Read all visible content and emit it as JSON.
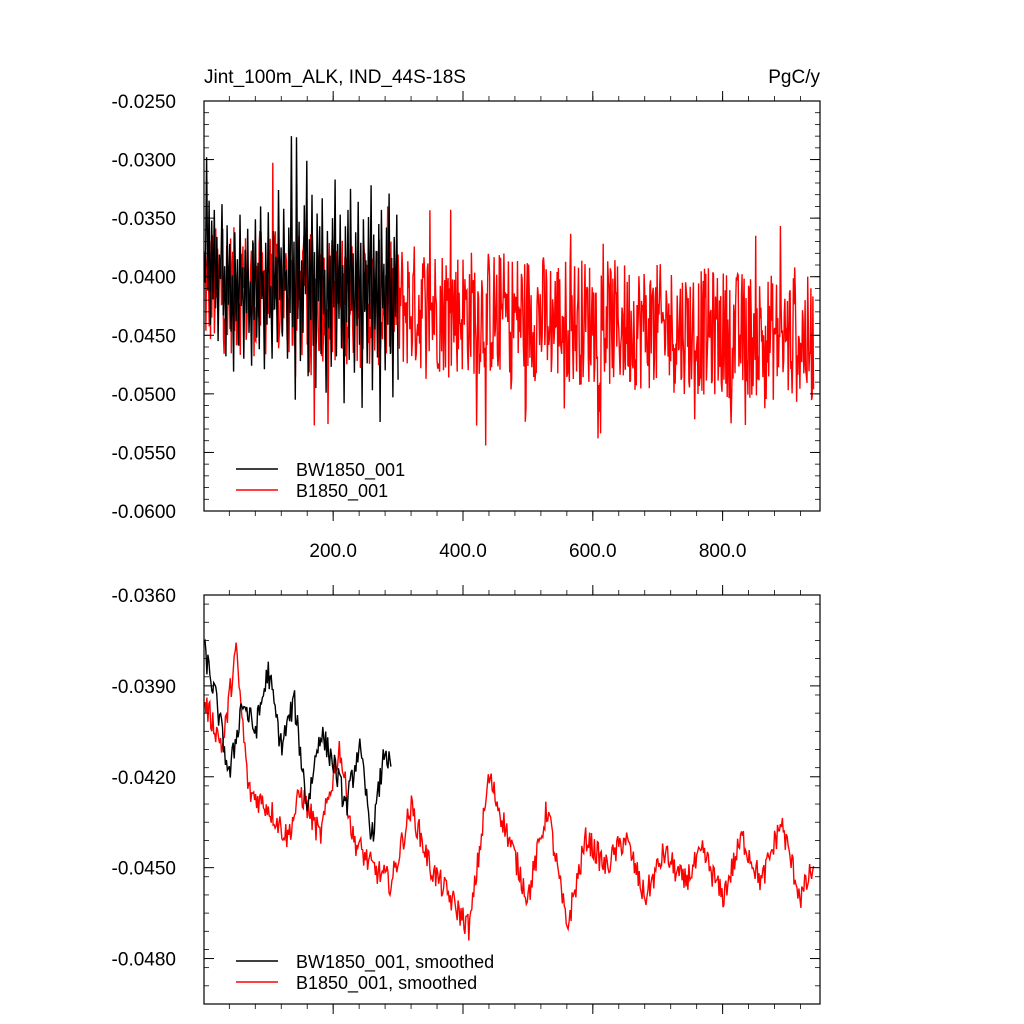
{
  "chart_data": [
    {
      "type": "line",
      "title": "Jint_100m_ALK, IND_44S-18S",
      "units": "PgC/y",
      "xlim": [
        1,
        950
      ],
      "ylim": [
        -0.06,
        -0.025
      ],
      "xticks": [
        200,
        400,
        600,
        800
      ],
      "xtick_labels": [
        "200.0",
        "400.0",
        "600.0",
        "800.0"
      ],
      "yticks": [
        -0.025,
        -0.03,
        -0.035,
        -0.04,
        -0.045,
        -0.05,
        -0.055,
        -0.06
      ],
      "ytick_labels": [
        "-0.0250",
        "-0.0300",
        "-0.0350",
        "-0.0400",
        "-0.0450",
        "-0.0500",
        "-0.0550",
        "-0.0600"
      ],
      "legend_position": "bottom-left",
      "series": [
        {
          "name": "BW1850_001",
          "color": "#000000",
          "x_start": 1,
          "values": [
            -0.0378,
            -0.0405,
            -0.0298,
            -0.0412,
            -0.0335,
            -0.0441,
            -0.0352,
            -0.0419,
            -0.0343,
            -0.0427,
            -0.0366,
            -0.0455,
            -0.0381,
            -0.0402,
            -0.0338,
            -0.0433,
            -0.0391,
            -0.0468,
            -0.0356,
            -0.0424,
            -0.0372,
            -0.0447,
            -0.0399,
            -0.0481,
            -0.0362,
            -0.0438,
            -0.0385,
            -0.0459,
            -0.0347,
            -0.0425,
            -0.0392,
            -0.047,
            -0.0377,
            -0.0431,
            -0.0359,
            -0.0448,
            -0.0404,
            -0.0476,
            -0.0369,
            -0.0437,
            -0.0351,
            -0.0452,
            -0.0388,
            -0.0462,
            -0.034,
            -0.0419,
            -0.0395,
            -0.0479,
            -0.0371,
            -0.0441,
            -0.0345,
            -0.0435,
            -0.0408,
            -0.047,
            -0.0361,
            -0.0428,
            -0.0383,
            -0.0456,
            -0.0326,
            -0.042,
            -0.0375,
            -0.0451,
            -0.0342,
            -0.0412,
            -0.0394,
            -0.047,
            -0.0358,
            -0.0431,
            -0.028,
            -0.0443,
            -0.037,
            -0.0505,
            -0.0281,
            -0.0436,
            -0.0353,
            -0.0472,
            -0.0386,
            -0.0448,
            -0.0339,
            -0.0415,
            -0.0301,
            -0.0485,
            -0.0368,
            -0.0437,
            -0.033,
            -0.0459,
            -0.0379,
            -0.0495,
            -0.0346,
            -0.0421,
            -0.0357,
            -0.0466,
            -0.0333,
            -0.0432,
            -0.0394,
            -0.0499,
            -0.0361,
            -0.0444,
            -0.0382,
            -0.0477,
            -0.035,
            -0.0426,
            -0.0317,
            -0.0468,
            -0.0372,
            -0.0436,
            -0.0347,
            -0.0461,
            -0.039,
            -0.0508,
            -0.0357,
            -0.0439,
            -0.0343,
            -0.0471,
            -0.0325,
            -0.0429,
            -0.038,
            -0.0482,
            -0.0362,
            -0.0442,
            -0.0336,
            -0.0458,
            -0.0371,
            -0.0512,
            -0.0351,
            -0.043,
            -0.0386,
            -0.0474,
            -0.0349,
            -0.0436,
            -0.0322,
            -0.0497,
            -0.0364,
            -0.0445,
            -0.0378,
            -0.0469,
            -0.0355,
            -0.0524,
            -0.0343,
            -0.0427,
            -0.0389,
            -0.048,
            -0.0358,
            -0.0441,
            -0.0329,
            -0.0466,
            -0.0384,
            -0.0503,
            -0.0366,
            -0.0434,
            -0.0347,
            -0.0488
          ],
          "x_end": 300
        },
        {
          "name": "B1850_001",
          "color": "#ff0000",
          "x_start": 1,
          "generated": "irregular annual series, mean trending from -0.0410 to -0.0455",
          "values_note": "rendered from seeded pseudo-series in script",
          "x_end": 940
        }
      ]
    },
    {
      "type": "line",
      "title": "",
      "xlim": [
        1,
        950
      ],
      "ylim": [
        -0.0495,
        -0.036
      ],
      "xticks": [
        200,
        400,
        600,
        800
      ],
      "yticks": [
        -0.036,
        -0.039,
        -0.042,
        -0.045,
        -0.048
      ],
      "ytick_labels": [
        "-0.0360",
        "-0.0390",
        "-0.0420",
        "-0.0450",
        "-0.0480"
      ],
      "legend_position": "bottom-left",
      "series": [
        {
          "name": "BW1850_001, smoothed",
          "color": "#000000",
          "x_start": 1,
          "x_end": 290,
          "anchor_x": [
            1,
            20,
            40,
            60,
            80,
            100,
            120,
            140,
            160,
            180,
            200,
            220,
            240,
            260,
            280,
            290
          ],
          "anchor_y": [
            -0.0378,
            -0.0395,
            -0.042,
            -0.0395,
            -0.0405,
            -0.0385,
            -0.041,
            -0.0395,
            -0.043,
            -0.0405,
            -0.0415,
            -0.043,
            -0.041,
            -0.044,
            -0.041,
            -0.042
          ]
        },
        {
          "name": "B1850_001, smoothed",
          "color": "#ff0000",
          "x_start": 1,
          "x_end": 940,
          "anchor_x": [
            1,
            30,
            50,
            70,
            100,
            130,
            150,
            180,
            210,
            230,
            260,
            290,
            320,
            350,
            380,
            410,
            440,
            470,
            500,
            530,
            560,
            590,
            620,
            650,
            680,
            710,
            740,
            770,
            800,
            830,
            860,
            890,
            920,
            940
          ],
          "anchor_y": [
            -0.0395,
            -0.041,
            -0.0378,
            -0.0425,
            -0.043,
            -0.044,
            -0.0425,
            -0.044,
            -0.041,
            -0.044,
            -0.045,
            -0.0455,
            -0.043,
            -0.045,
            -0.046,
            -0.047,
            -0.042,
            -0.044,
            -0.046,
            -0.043,
            -0.047,
            -0.044,
            -0.045,
            -0.044,
            -0.046,
            -0.0445,
            -0.0455,
            -0.0445,
            -0.046,
            -0.044,
            -0.0455,
            -0.0435,
            -0.046,
            -0.045
          ]
        }
      ]
    }
  ]
}
